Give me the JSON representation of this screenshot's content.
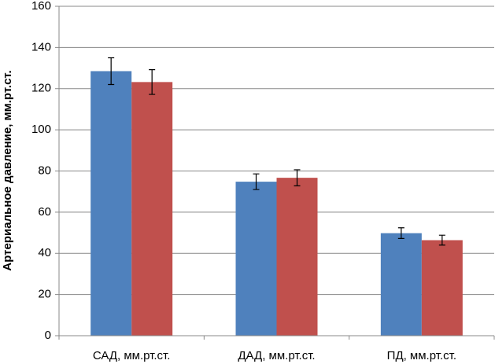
{
  "chart_data": {
    "type": "bar",
    "y_label": "Артериальное давление, мм.рт.ст.",
    "categories": [
      "САД, мм.рт.ст.",
      "ДАД, мм.рт.ст.",
      "ПД, мм.рт.ст."
    ],
    "series": [
      {
        "color": "#4f81bd",
        "values": [
          128.5,
          74.8,
          49.8
        ],
        "errors": [
          6.5,
          3.8,
          2.6
        ]
      },
      {
        "color": "#c0504d",
        "values": [
          123.2,
          76.7,
          46.4
        ],
        "errors": [
          6.0,
          3.9,
          2.4
        ]
      }
    ],
    "ylim": [
      0,
      160
    ],
    "yticks": [
      0,
      20,
      40,
      60,
      80,
      100,
      120,
      140,
      160
    ],
    "grid": true
  }
}
